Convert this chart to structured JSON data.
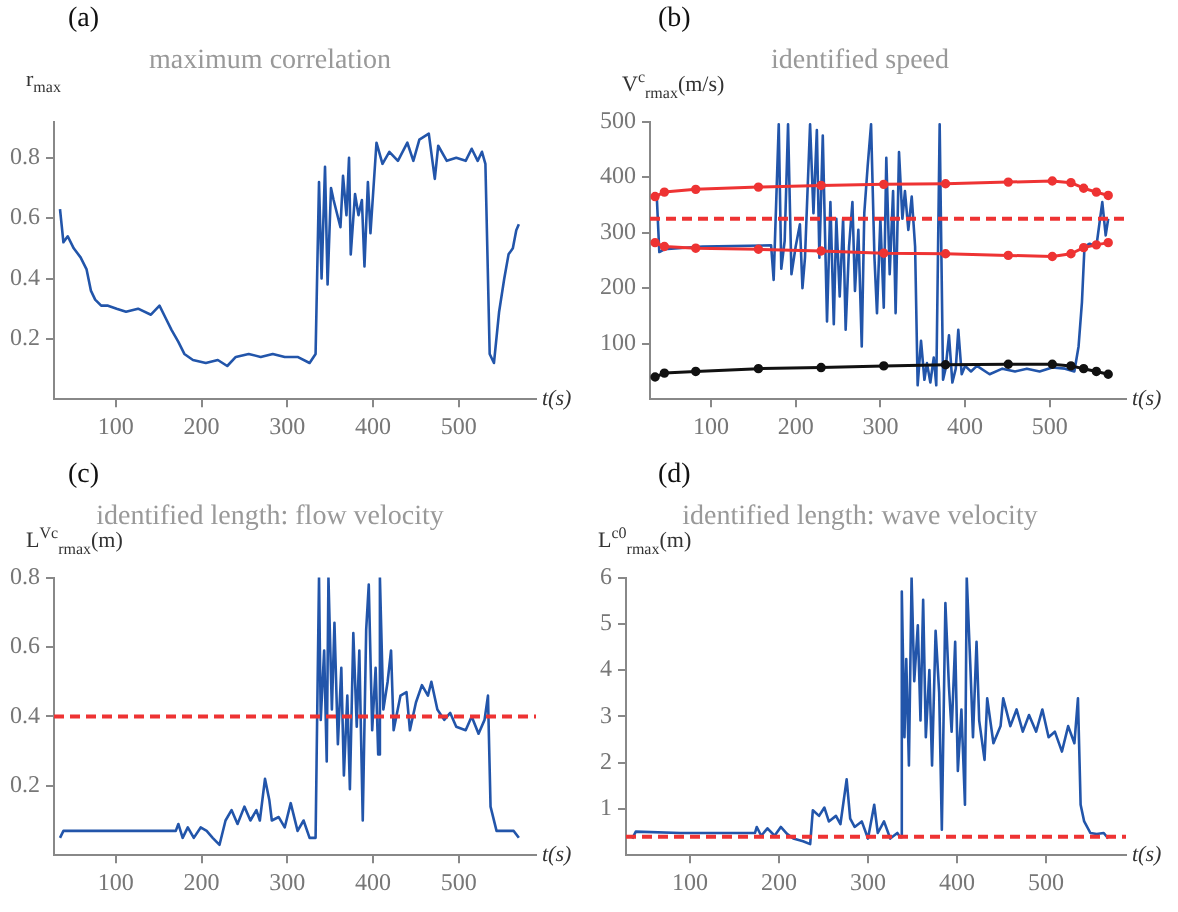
{
  "chart_data": [
    {
      "type": "line",
      "title": "maximum correlation",
      "annotations": [
        "(a)"
      ],
      "xlabel": "t(s)",
      "ylabel": "r$_{max}$",
      "xlim": [
        28,
        590
      ],
      "xticks": [
        100,
        200,
        300,
        400,
        500
      ],
      "ylim": [
        0,
        0.92
      ],
      "yticks": [
        0.2,
        0.4,
        0.6,
        0.8
      ],
      "grid": false,
      "series": [
        {
          "color": "#2255aa",
          "x": [
            35,
            39,
            44,
            51,
            59,
            66,
            71,
            76,
            83,
            91,
            101,
            112,
            126,
            141,
            151,
            158,
            165,
            173,
            180,
            190,
            205,
            219,
            230,
            240,
            255,
            269,
            283,
            297,
            312,
            326,
            333,
            337,
            340,
            344,
            347,
            351,
            354,
            362,
            365,
            369,
            372,
            374,
            379,
            383,
            387,
            390,
            394,
            397,
            404,
            411,
            419,
            429,
            440,
            447,
            454,
            465,
            472,
            476,
            486,
            497,
            508,
            515,
            522,
            527,
            531,
            536,
            541,
            547,
            553,
            558,
            563,
            567,
            570
          ],
          "values": [
            0.63,
            0.52,
            0.54,
            0.5,
            0.47,
            0.43,
            0.36,
            0.33,
            0.31,
            0.31,
            0.3,
            0.29,
            0.3,
            0.28,
            0.31,
            0.27,
            0.23,
            0.19,
            0.15,
            0.13,
            0.12,
            0.13,
            0.11,
            0.14,
            0.15,
            0.14,
            0.15,
            0.14,
            0.14,
            0.12,
            0.15,
            0.72,
            0.4,
            0.77,
            0.38,
            0.7,
            0.66,
            0.57,
            0.74,
            0.61,
            0.8,
            0.48,
            0.68,
            0.61,
            0.66,
            0.44,
            0.72,
            0.55,
            0.85,
            0.78,
            0.82,
            0.79,
            0.85,
            0.79,
            0.86,
            0.88,
            0.73,
            0.84,
            0.79,
            0.8,
            0.79,
            0.83,
            0.79,
            0.82,
            0.78,
            0.15,
            0.12,
            0.29,
            0.4,
            0.48,
            0.5,
            0.56,
            0.58
          ]
        }
      ]
    },
    {
      "type": "line",
      "title": "identified speed",
      "annotations": [
        "(b)"
      ],
      "xlabel": "t(s)",
      "ylabel": "V$^{c}$$_{rmax}$(m/s)",
      "xlim": [
        28,
        590
      ],
      "xticks": [
        100,
        200,
        300,
        400,
        500
      ],
      "ylim": [
        0,
        500
      ],
      "yticks": [
        100,
        200,
        300,
        400,
        500
      ],
      "grid": false,
      "ref_lines": [
        {
          "axis": "y",
          "value": 325,
          "color": "#ee3333",
          "line_style": "dashed"
        }
      ],
      "series": [
        {
          "color": "#ee3333",
          "marker": "circle",
          "x": [
            34,
            45,
            82,
            156,
            230,
            304,
            377,
            451,
            503,
            525,
            540,
            555,
            569
          ],
          "values": [
            365,
            373,
            378,
            382,
            385,
            387,
            388,
            391,
            393,
            390,
            380,
            373,
            367
          ]
        },
        {
          "color": "#ee3333",
          "marker": "circle",
          "x": [
            34,
            45,
            82,
            156,
            230,
            304,
            377,
            451,
            503,
            525,
            540,
            555,
            569
          ],
          "values": [
            282,
            275,
            272,
            270,
            267,
            263,
            262,
            259,
            257,
            262,
            273,
            278,
            282
          ]
        },
        {
          "color": "#111111",
          "marker": "circle",
          "x": [
            34,
            45,
            82,
            156,
            230,
            304,
            377,
            451,
            503,
            525,
            540,
            555,
            569
          ],
          "values": [
            40,
            47,
            50,
            55,
            57,
            60,
            62,
            63,
            63,
            60,
            55,
            50,
            45
          ]
        },
        {
          "color": "#2255aa",
          "x": [
            36,
            39,
            45,
            90,
            171,
            174,
            180,
            183,
            187,
            191,
            195,
            200,
            205,
            208,
            211,
            217,
            221,
            225,
            228,
            232,
            237,
            241,
            245,
            248,
            252,
            256,
            259,
            263,
            267,
            270,
            274,
            278,
            281,
            285,
            289,
            293,
            296,
            300,
            304,
            307,
            311,
            315,
            318,
            322,
            326,
            329,
            333,
            337,
            341,
            344,
            348,
            352,
            355,
            359,
            363,
            366,
            370,
            374,
            377,
            381,
            385,
            389,
            392,
            396,
            400,
            407,
            414,
            429,
            444,
            459,
            473,
            488,
            503,
            518,
            529,
            534,
            538,
            541,
            547,
            555,
            562,
            566,
            569
          ],
          "values": [
            365,
            265,
            270,
            275,
            277,
            215,
            495,
            235,
            285,
            495,
            225,
            275,
            315,
            200,
            255,
            495,
            335,
            485,
            255,
            475,
            140,
            355,
            135,
            325,
            185,
            325,
            125,
            275,
            355,
            195,
            305,
            95,
            335,
            420,
            495,
            255,
            155,
            325,
            165,
            435,
            225,
            375,
            155,
            445,
            325,
            375,
            305,
            365,
            275,
            25,
            105,
            35,
            65,
            30,
            75,
            25,
            495,
            35,
            55,
            115,
            30,
            55,
            125,
            45,
            60,
            50,
            60,
            45,
            55,
            50,
            55,
            50,
            57,
            55,
            50,
            95,
            175,
            275,
            280,
            275,
            355,
            295,
            325
          ]
        }
      ]
    },
    {
      "type": "line",
      "title": "identified length: flow velocity",
      "annotations": [
        "(c)"
      ],
      "xlabel": "t(s)",
      "ylabel": "L$^{Vc}$$_{rmax}$(m)",
      "xlim": [
        28,
        590
      ],
      "xticks": [
        100,
        200,
        300,
        400,
        500
      ],
      "ylim": [
        0,
        0.8
      ],
      "yticks": [
        0.2,
        0.4,
        0.6,
        0.8
      ],
      "grid": false,
      "ref_lines": [
        {
          "axis": "y",
          "value": 0.4,
          "color": "#ee3333",
          "line_style": "dashed"
        }
      ],
      "series": [
        {
          "color": "#2255aa",
          "x": [
            35,
            39,
            82,
            170,
            173,
            178,
            184,
            191,
            199,
            206,
            213,
            221,
            228,
            235,
            242,
            250,
            257,
            264,
            268,
            274,
            279,
            282,
            290,
            297,
            304,
            312,
            319,
            326,
            333,
            337,
            339,
            343,
            346,
            348,
            352,
            355,
            359,
            363,
            366,
            370,
            373,
            377,
            381,
            384,
            388,
            392,
            395,
            399,
            403,
            406,
            408,
            412,
            417,
            421,
            424,
            432,
            439,
            443,
            450,
            457,
            464,
            468,
            475,
            483,
            490,
            497,
            508,
            515,
            523,
            530,
            534,
            537,
            544,
            555,
            564,
            570
          ],
          "values": [
            0.05,
            0.07,
            0.07,
            0.07,
            0.09,
            0.05,
            0.08,
            0.05,
            0.08,
            0.07,
            0.05,
            0.03,
            0.1,
            0.13,
            0.09,
            0.14,
            0.1,
            0.13,
            0.1,
            0.22,
            0.16,
            0.1,
            0.11,
            0.08,
            0.15,
            0.07,
            0.1,
            0.05,
            0.05,
            0.8,
            0.39,
            0.59,
            0.27,
            0.8,
            0.42,
            0.67,
            0.32,
            0.54,
            0.23,
            0.46,
            0.19,
            0.64,
            0.37,
            0.59,
            0.1,
            0.65,
            0.78,
            0.36,
            0.54,
            0.29,
            0.8,
            0.42,
            0.5,
            0.59,
            0.36,
            0.46,
            0.47,
            0.36,
            0.44,
            0.49,
            0.46,
            0.5,
            0.42,
            0.39,
            0.41,
            0.37,
            0.36,
            0.4,
            0.35,
            0.39,
            0.46,
            0.14,
            0.07,
            0.07,
            0.07,
            0.05
          ]
        }
      ]
    },
    {
      "type": "line",
      "title": "identified length: wave velocity",
      "annotations": [
        "(d)"
      ],
      "xlabel": "t(s)",
      "ylabel": "L$^{c0}$$_{rmax}$(m)",
      "xlim": [
        28,
        590
      ],
      "xticks": [
        100,
        200,
        300,
        400,
        500
      ],
      "ylim": [
        0,
        6
      ],
      "yticks": [
        1,
        2,
        3,
        4,
        5,
        6
      ],
      "grid": false,
      "ref_lines": [
        {
          "axis": "y",
          "value": 0.4,
          "color": "#ee3333",
          "line_style": "dashed"
        }
      ],
      "series": [
        {
          "color": "#2255aa",
          "x": [
            35,
            39,
            89,
            173,
            175,
            180,
            187,
            195,
            202,
            209,
            216,
            227,
            235,
            238,
            245,
            251,
            256,
            264,
            269,
            276,
            280,
            285,
            293,
            300,
            307,
            311,
            318,
            325,
            333,
            336,
            338,
            341,
            343,
            346,
            349,
            352,
            356,
            359,
            362,
            365,
            369,
            372,
            376,
            380,
            383,
            387,
            391,
            394,
            398,
            401,
            405,
            409,
            411,
            415,
            418,
            422,
            425,
            431,
            434,
            441,
            449,
            452,
            460,
            467,
            474,
            481,
            489,
            496,
            503,
            510,
            518,
            525,
            532,
            536,
            539,
            543,
            550,
            557,
            565,
            570
          ],
          "values": [
            0.36,
            0.51,
            0.48,
            0.48,
            0.61,
            0.42,
            0.58,
            0.42,
            0.61,
            0.46,
            0.36,
            0.3,
            0.24,
            0.97,
            0.85,
            1.03,
            0.73,
            0.85,
            0.67,
            1.64,
            0.79,
            0.61,
            0.73,
            0.36,
            1.09,
            0.48,
            0.73,
            0.36,
            0.48,
            0.39,
            5.7,
            2.55,
            4.24,
            1.94,
            6,
            3.76,
            4.97,
            2.91,
            5.52,
            2.55,
            4,
            1.94,
            4.85,
            3.52,
            0.55,
            5.45,
            3.64,
            2.67,
            4.61,
            1.82,
            3.15,
            1.09,
            6,
            4.12,
            2.55,
            4.61,
            2.91,
            2.06,
            3.39,
            2.42,
            2.79,
            3.39,
            2.79,
            3.15,
            2.67,
            3.03,
            2.67,
            3.15,
            2.55,
            2.67,
            2.24,
            2.79,
            2.42,
            3.39,
            1.09,
            0.73,
            0.48,
            0.46,
            0.48,
            0.36
          ]
        }
      ]
    }
  ]
}
